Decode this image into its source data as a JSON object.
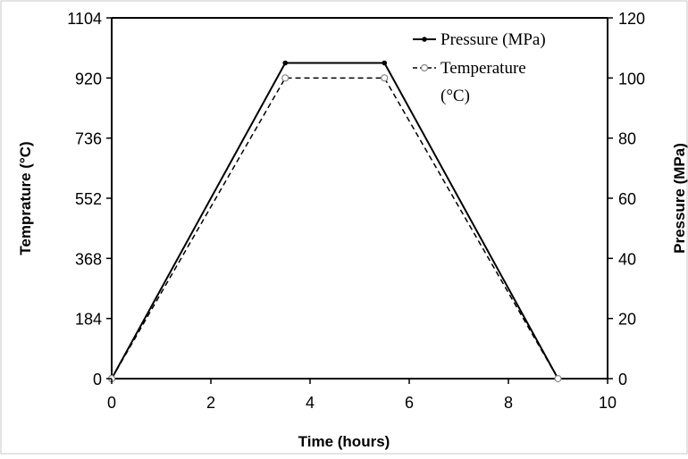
{
  "chart_data": {
    "type": "line",
    "xlabel": "Time (hours)",
    "ylabel_left": "Temprature (°C)",
    "ylabel_right": "Pressure (MPa)",
    "xlim": [
      0,
      10
    ],
    "ylim_left": [
      0,
      1104
    ],
    "ylim_right": [
      0,
      120
    ],
    "x_ticks": [
      "0",
      "2",
      "4",
      "6",
      "8",
      "10"
    ],
    "y_left_ticks": [
      "0",
      "184",
      "368",
      "552",
      "736",
      "920",
      "1104"
    ],
    "y_right_ticks": [
      "0",
      "20",
      "40",
      "60",
      "80",
      "100",
      "120"
    ],
    "grid": false,
    "legend_position": "top-right",
    "series": [
      {
        "name": "Pressure (MPa)",
        "axis": "right",
        "style": "solid",
        "marker": "filled-dot",
        "color": "#000000",
        "x": [
          0,
          3.5,
          5.5,
          9
        ],
        "y": [
          0,
          105,
          105,
          0
        ]
      },
      {
        "name": "Temperature (°C)",
        "axis": "left",
        "style": "dashed",
        "marker": "open-circle",
        "color": "#000000",
        "x": [
          0,
          3.5,
          5.5,
          9
        ],
        "y": [
          0,
          920,
          920,
          0
        ]
      }
    ]
  }
}
